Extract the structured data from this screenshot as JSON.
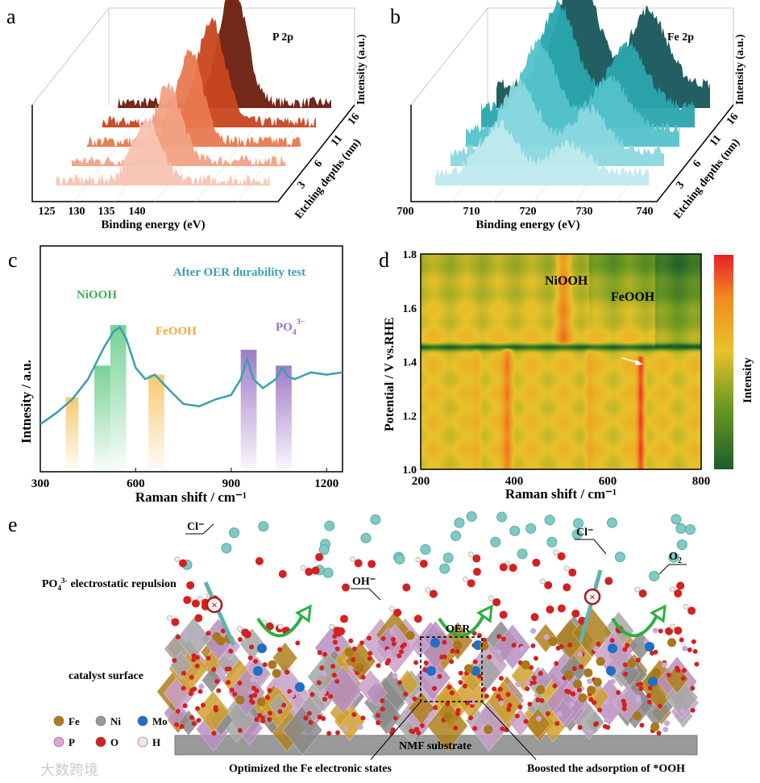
{
  "panel_labels": {
    "a": "a",
    "b": "b",
    "c": "c",
    "d": "d",
    "e": "e"
  },
  "chart_data": [
    {
      "id": "a",
      "type": "area",
      "title": "P 2p",
      "xlabel": "Binding energy (eV)",
      "ylabel": "Intensity (a.u.)",
      "zlabel": "Etching depths (nm)",
      "x_ticks": [
        "125",
        "130",
        "135",
        "140"
      ],
      "xlim": [
        124,
        144
      ],
      "z_ticks": [
        "3",
        "6",
        "11",
        "16"
      ],
      "depths": [
        0,
        3,
        6,
        11,
        16
      ],
      "peak_center_eV": 134.5,
      "peak_heights": [
        0.45,
        0.55,
        0.65,
        0.75,
        0.85
      ],
      "colors": [
        "#f7c4b2",
        "#f2a283",
        "#e9794f",
        "#c8471e",
        "#6a1e0e"
      ]
    },
    {
      "id": "b",
      "type": "area",
      "title": "Fe 2p",
      "xlabel": "Binding energy (eV)",
      "ylabel": "Intensity (a.u.)",
      "zlabel": "Etching depths (nm)",
      "x_ticks": [
        "700",
        "710",
        "720",
        "730",
        "740"
      ],
      "xlim": [
        699,
        741
      ],
      "z_ticks": [
        "3",
        "6",
        "11",
        "16"
      ],
      "depths": [
        0,
        3,
        6,
        11,
        16
      ],
      "peak_centers_eV": [
        711.5,
        725
      ],
      "peak_heights": [
        0.35,
        0.5,
        0.62,
        0.75,
        0.9
      ],
      "colors": [
        "#bfeaee",
        "#8ad8df",
        "#54c2ca",
        "#2aa5ae",
        "#17555b"
      ]
    },
    {
      "id": "c",
      "type": "line",
      "title": "After OER durability test",
      "xlabel": "Raman shift / cm⁻¹",
      "ylabel": "Intnesity / a.u.",
      "xlim": [
        300,
        1250
      ],
      "ylim": [
        0,
        100
      ],
      "x_ticks": [
        "300",
        "600",
        "900",
        "1200"
      ],
      "x": [
        300,
        350,
        400,
        450,
        500,
        530,
        550,
        570,
        600,
        630,
        660,
        700,
        750,
        800,
        850,
        900,
        930,
        950,
        970,
        1000,
        1040,
        1060,
        1080,
        1100,
        1150,
        1200,
        1250
      ],
      "y": [
        21,
        26,
        32,
        41,
        55,
        62,
        64,
        59,
        46,
        41,
        43,
        37,
        30,
        29,
        32,
        34,
        41,
        50,
        41,
        37,
        41,
        46,
        42,
        41,
        44,
        43,
        44
      ],
      "line_color": "#3a9fb0",
      "bands": [
        {
          "from": 380,
          "to": 420,
          "height": 33,
          "color": "#f7c66a"
        },
        {
          "from": 470,
          "to": 520,
          "height": 47,
          "color": "#6fd08f"
        },
        {
          "from": 520,
          "to": 570,
          "height": 65,
          "color": "#6fd08f"
        },
        {
          "from": 640,
          "to": 690,
          "height": 43,
          "color": "#f7c66a"
        },
        {
          "from": 930,
          "to": 980,
          "height": 54,
          "color": "#9b74c4"
        },
        {
          "from": 1040,
          "to": 1090,
          "height": 47,
          "color": "#9b74c4"
        }
      ],
      "annotations": [
        {
          "text": "NiOOH",
          "color": "#3fae58"
        },
        {
          "text": "FeOOH",
          "color": "#f2a93b"
        },
        {
          "text": "PO",
          "sub": "4",
          "sup": "3−",
          "color": "#9b6fbf"
        }
      ]
    },
    {
      "id": "d",
      "type": "heatmap",
      "xlabel": "Raman shift / cm⁻¹",
      "ylabel": "Potential / V vs.RHE",
      "colorbar_label": "Intensity",
      "xlim": [
        200,
        800
      ],
      "ylim": [
        1.0,
        1.8
      ],
      "x_ticks": [
        "200",
        "400",
        "600",
        "800"
      ],
      "y_ticks": [
        "1.0",
        "1.2",
        "1.4",
        "1.6",
        "1.8"
      ],
      "features": [
        {
          "x": 385,
          "vmin": 1.0,
          "vmax": 1.45,
          "strength": 0.55,
          "width": 10
        },
        {
          "x": 670,
          "vmin": 1.0,
          "vmax": 1.42,
          "strength": 0.85,
          "width": 8
        },
        {
          "x": 505,
          "vmin": 1.47,
          "vmax": 1.8,
          "strength": 0.5,
          "width": 14
        },
        {
          "x": 560,
          "vmin": 1.0,
          "vmax": 1.45,
          "strength": 0.2,
          "width": 8
        },
        {
          "x": 320,
          "vmin": 1.0,
          "vmax": 1.45,
          "strength": 0.2,
          "width": 8
        }
      ],
      "dark_band_potential": 1.455,
      "annotations": [
        {
          "text": "NiOOH"
        },
        {
          "text": "FeOOH"
        }
      ],
      "colormap": [
        "#1c5e2a",
        "#6e9a22",
        "#e8c22a",
        "#f08a20",
        "#e8202a"
      ]
    }
  ],
  "schematic": {
    "labels": {
      "cl1": "Cl⁻",
      "cl2": "Cl⁻",
      "oh": "OH⁻",
      "o2": "O",
      "o2_sub": "2",
      "repulsion": "electrostatic repulsion",
      "repulsion_prefix": "PO",
      "repulsion_sub": "4",
      "repulsion_sup": "3-",
      "oer": "OER",
      "catalyst": "catalyst surface",
      "substrate": "NMF substrate",
      "callout_left": "Optimized the Fe electronic states",
      "callout_right": "Boosted the adsorption of *OOH"
    },
    "legend": [
      {
        "label": "Fe",
        "color": "#b07a1a"
      },
      {
        "label": "Ni",
        "color": "#9a9a9a"
      },
      {
        "label": "Mo",
        "color": "#1f6fc8"
      },
      {
        "label": "P",
        "color": "#e6a2d6"
      },
      {
        "label": "O",
        "color": "#d42020"
      },
      {
        "label": "H",
        "color": "#f4e4e4"
      }
    ]
  },
  "watermark": "大数跨境"
}
